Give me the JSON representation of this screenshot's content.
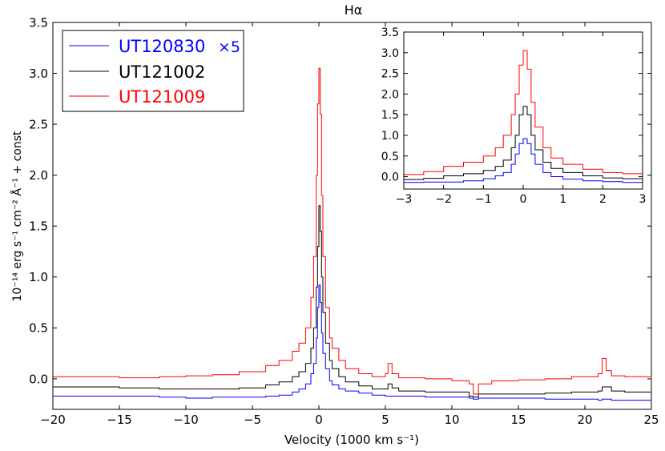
{
  "chart_data": [
    {
      "type": "line",
      "title": "Hα",
      "xlabel": "Velocity (1000 km s⁻¹)",
      "ylabel": "10⁻¹⁴ erg s⁻¹ cm⁻² Å⁻¹ + const",
      "xlim": [
        -20,
        25
      ],
      "ylim": [
        -0.3,
        3.5
      ],
      "x_ticks": [
        "−20",
        "−15",
        "−10",
        "−5",
        "0",
        "5",
        "10",
        "15",
        "20",
        "25"
      ],
      "y_ticks": [
        "0.0",
        "0.5",
        "1.0",
        "1.5",
        "2.0",
        "2.5",
        "3.0",
        "3.5"
      ],
      "grid": false,
      "legend": "top-left",
      "series": [
        {
          "name": "UT120830",
          "suffix": "×5",
          "color": "#0000ff",
          "x": [
            -20,
            -15,
            -12,
            -10,
            -8,
            -6,
            -4,
            -3,
            -2,
            -1.5,
            -1,
            -0.6,
            -0.4,
            -0.2,
            -0.1,
            0,
            0.1,
            0.2,
            0.3,
            0.5,
            0.8,
            1,
            1.5,
            2,
            3,
            4,
            5,
            6,
            8,
            10,
            11.3,
            11.6,
            12,
            13,
            15,
            17,
            19,
            21,
            21.3,
            22,
            23,
            25
          ],
          "y": [
            -0.17,
            -0.17,
            -0.18,
            -0.19,
            -0.18,
            -0.18,
            -0.17,
            -0.16,
            -0.13,
            -0.1,
            -0.05,
            0.05,
            0.15,
            0.4,
            0.7,
            0.92,
            0.75,
            0.45,
            0.25,
            0.1,
            -0.02,
            -0.06,
            -0.1,
            -0.12,
            -0.14,
            -0.16,
            -0.17,
            -0.17,
            -0.18,
            -0.18,
            -0.19,
            -0.2,
            -0.19,
            -0.19,
            -0.19,
            -0.2,
            -0.2,
            -0.21,
            -0.2,
            -0.21,
            -0.21,
            -0.22
          ]
        },
        {
          "name": "UT121002",
          "color": "#000000",
          "x": [
            -20,
            -15,
            -12,
            -10,
            -8,
            -6,
            -4,
            -3,
            -2,
            -1.5,
            -1,
            -0.6,
            -0.4,
            -0.2,
            -0.1,
            0,
            0.1,
            0.2,
            0.3,
            0.5,
            0.8,
            1,
            1.5,
            2,
            3,
            4,
            5,
            5.2,
            5.5,
            6,
            8,
            10,
            11.3,
            11.6,
            12,
            13,
            15,
            17,
            19,
            21,
            21.3,
            22,
            23,
            25
          ],
          "y": [
            -0.08,
            -0.09,
            -0.1,
            -0.1,
            -0.1,
            -0.09,
            -0.06,
            -0.03,
            0.02,
            0.07,
            0.15,
            0.3,
            0.5,
            0.9,
            1.3,
            1.7,
            1.45,
            1.0,
            0.65,
            0.35,
            0.18,
            0.1,
            0.02,
            -0.03,
            -0.07,
            -0.1,
            -0.1,
            -0.05,
            -0.09,
            -0.12,
            -0.13,
            -0.13,
            -0.17,
            -0.18,
            -0.15,
            -0.15,
            -0.15,
            -0.14,
            -0.13,
            -0.12,
            -0.08,
            -0.12,
            -0.13,
            -0.14
          ]
        },
        {
          "name": "UT121009",
          "color": "#ff0000",
          "x": [
            -20,
            -15,
            -12,
            -10,
            -8,
            -6,
            -4,
            -3,
            -2,
            -1.5,
            -1,
            -0.6,
            -0.4,
            -0.2,
            -0.1,
            0,
            0.1,
            0.2,
            0.3,
            0.5,
            0.8,
            1,
            1.5,
            2,
            3,
            4,
            5,
            5.2,
            5.5,
            6,
            8,
            10,
            11.3,
            11.6,
            12,
            13,
            15,
            17,
            19,
            21,
            21.3,
            21.6,
            22,
            23,
            25
          ],
          "y": [
            0.02,
            0.01,
            0.02,
            0.03,
            0.04,
            0.07,
            0.13,
            0.18,
            0.27,
            0.35,
            0.5,
            0.8,
            1.2,
            2.0,
            2.7,
            3.05,
            2.6,
            1.8,
            1.2,
            0.7,
            0.4,
            0.3,
            0.18,
            0.1,
            0.05,
            0.02,
            0.05,
            0.15,
            0.05,
            0.01,
            0.0,
            -0.02,
            -0.05,
            -0.15,
            -0.05,
            -0.02,
            -0.01,
            0.0,
            0.02,
            0.05,
            0.2,
            0.08,
            0.03,
            0.02,
            0.0
          ]
        }
      ]
    },
    {
      "type": "line",
      "title": "",
      "xlim": [
        -3,
        3
      ],
      "ylim": [
        -0.3,
        3.5
      ],
      "x_ticks": [
        "−3",
        "−2",
        "−1",
        "0",
        "1",
        "2",
        "3"
      ],
      "y_ticks": [
        "0.0",
        "0.5",
        "1.0",
        "1.5",
        "2.0",
        "2.5",
        "3.0",
        "3.5"
      ],
      "series": [
        {
          "color": "#0000ff",
          "x": [
            -3,
            -2.5,
            -2,
            -1.5,
            -1,
            -0.7,
            -0.5,
            -0.3,
            -0.2,
            -0.1,
            0,
            0.1,
            0.2,
            0.3,
            0.5,
            0.7,
            1,
            1.5,
            2,
            2.5,
            3
          ],
          "y": [
            -0.14,
            -0.13,
            -0.13,
            -0.1,
            -0.05,
            0.02,
            0.1,
            0.3,
            0.55,
            0.8,
            0.92,
            0.8,
            0.55,
            0.3,
            0.1,
            0.0,
            -0.06,
            -0.1,
            -0.12,
            -0.14,
            -0.15
          ]
        },
        {
          "color": "#000000",
          "x": [
            -3,
            -2.5,
            -2,
            -1.5,
            -1,
            -0.7,
            -0.5,
            -0.3,
            -0.2,
            -0.1,
            0,
            0.1,
            0.2,
            0.3,
            0.5,
            0.7,
            1,
            1.5,
            2,
            2.5,
            3
          ],
          "y": [
            -0.07,
            -0.04,
            0.02,
            0.07,
            0.15,
            0.25,
            0.4,
            0.7,
            1.0,
            1.5,
            1.7,
            1.5,
            1.0,
            0.65,
            0.35,
            0.2,
            0.1,
            0.02,
            -0.03,
            -0.05,
            -0.07
          ]
        },
        {
          "color": "#ff0000",
          "x": [
            -3,
            -2.5,
            -2,
            -1.5,
            -1,
            -0.7,
            -0.5,
            -0.3,
            -0.2,
            -0.1,
            0,
            0.1,
            0.2,
            0.3,
            0.5,
            0.7,
            1,
            1.5,
            2,
            2.5,
            3
          ],
          "y": [
            0.05,
            0.12,
            0.25,
            0.35,
            0.5,
            0.7,
            1.0,
            1.5,
            2.0,
            2.7,
            3.05,
            2.6,
            1.8,
            1.2,
            0.7,
            0.45,
            0.3,
            0.18,
            0.1,
            0.07,
            0.05
          ]
        }
      ]
    }
  ]
}
